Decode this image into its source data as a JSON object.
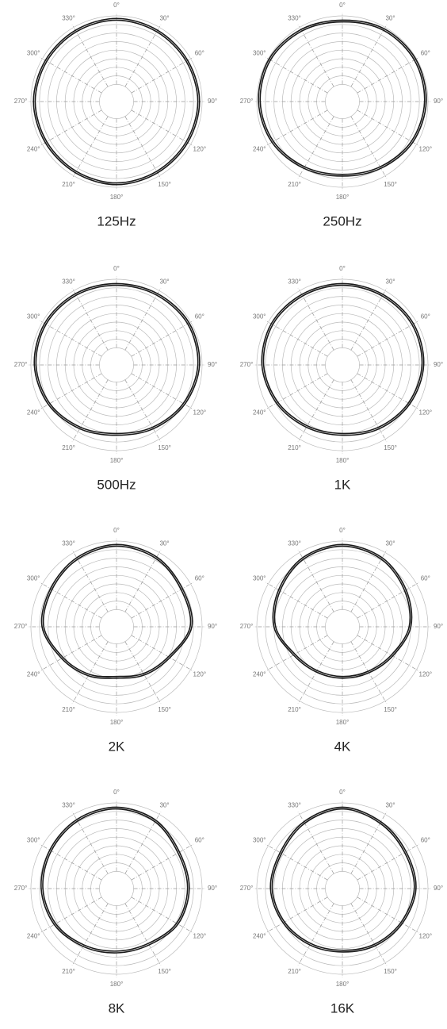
{
  "chart_data": [
    {
      "type": "polar",
      "title": "125Hz",
      "rlim": [
        0,
        10
      ],
      "rticks": [
        2,
        3,
        4,
        5,
        6,
        7,
        8,
        9,
        10
      ],
      "thetaticks": [
        {
          "value": 0,
          "label": "0°"
        },
        {
          "value": 30,
          "label": "30°"
        },
        {
          "value": 60,
          "label": "60°"
        },
        {
          "value": 90,
          "label": "90°"
        },
        {
          "value": 120,
          "label": "120°"
        },
        {
          "value": 150,
          "label": "150°"
        },
        {
          "value": 180,
          "label": "180°"
        },
        {
          "value": 210,
          "label": "210°"
        },
        {
          "value": 240,
          "label": "240°"
        },
        {
          "value": 270,
          "label": "270°"
        },
        {
          "value": 300,
          "label": "300°"
        },
        {
          "value": 330,
          "label": "330°"
        }
      ],
      "series": [
        {
          "color": "#1a1a1a",
          "values": [
            9.7,
            9.6,
            9.6,
            9.7,
            9.6,
            9.6,
            9.7,
            9.6,
            9.6,
            9.7,
            9.6,
            9.6
          ]
        },
        {
          "color": "#1a1a1a",
          "values": [
            9.5,
            9.4,
            9.4,
            9.5,
            9.4,
            9.4,
            9.5,
            9.4,
            9.4,
            9.5,
            9.4,
            9.4
          ]
        }
      ]
    },
    {
      "type": "polar",
      "title": "250Hz",
      "rlim": [
        0,
        10
      ],
      "rticks": [
        2,
        3,
        4,
        5,
        6,
        7,
        8,
        9,
        10
      ],
      "thetaticks": [
        {
          "value": 0,
          "label": "0°"
        },
        {
          "value": 30,
          "label": "30°"
        },
        {
          "value": 60,
          "label": "60°"
        },
        {
          "value": 90,
          "label": "90°"
        },
        {
          "value": 120,
          "label": "120°"
        },
        {
          "value": 150,
          "label": "150°"
        },
        {
          "value": 180,
          "label": "180°"
        },
        {
          "value": 210,
          "label": "210°"
        },
        {
          "value": 240,
          "label": "240°"
        },
        {
          "value": 270,
          "label": "270°"
        },
        {
          "value": 300,
          "label": "300°"
        },
        {
          "value": 330,
          "label": "330°"
        }
      ],
      "series": [
        {
          "color": "#1a1a1a",
          "values": [
            9.5,
            9.8,
            9.9,
            9.8,
            9.5,
            9.0,
            8.7,
            9.0,
            9.5,
            9.8,
            9.9,
            9.7
          ]
        },
        {
          "color": "#1a1a1a",
          "values": [
            9.3,
            9.6,
            9.7,
            9.6,
            9.3,
            8.8,
            8.5,
            8.8,
            9.3,
            9.6,
            9.7,
            9.5
          ]
        }
      ]
    },
    {
      "type": "polar",
      "title": "500Hz",
      "rlim": [
        0,
        10
      ],
      "rticks": [
        2,
        3,
        4,
        5,
        6,
        7,
        8,
        9,
        10
      ],
      "thetaticks": [
        {
          "value": 0,
          "label": "0°"
        },
        {
          "value": 30,
          "label": "30°"
        },
        {
          "value": 60,
          "label": "60°"
        },
        {
          "value": 90,
          "label": "90°"
        },
        {
          "value": 120,
          "label": "120°"
        },
        {
          "value": 150,
          "label": "150°"
        },
        {
          "value": 180,
          "label": "180°"
        },
        {
          "value": 210,
          "label": "210°"
        },
        {
          "value": 240,
          "label": "240°"
        },
        {
          "value": 270,
          "label": "270°"
        },
        {
          "value": 300,
          "label": "300°"
        },
        {
          "value": 330,
          "label": "330°"
        }
      ],
      "series": [
        {
          "color": "#1a1a1a",
          "values": [
            9.5,
            9.6,
            9.8,
            9.7,
            9.2,
            8.6,
            8.2,
            8.6,
            9.2,
            9.6,
            9.7,
            9.6
          ]
        },
        {
          "color": "#1a1a1a",
          "values": [
            9.3,
            9.4,
            9.6,
            9.5,
            9.0,
            8.4,
            8.0,
            8.4,
            9.0,
            9.4,
            9.5,
            9.4
          ]
        }
      ]
    },
    {
      "type": "polar",
      "title": "1K",
      "rlim": [
        0,
        10
      ],
      "rticks": [
        2,
        3,
        4,
        5,
        6,
        7,
        8,
        9,
        10
      ],
      "thetaticks": [
        {
          "value": 0,
          "label": "0°"
        },
        {
          "value": 30,
          "label": "30°"
        },
        {
          "value": 60,
          "label": "60°"
        },
        {
          "value": 90,
          "label": "90°"
        },
        {
          "value": 120,
          "label": "120°"
        },
        {
          "value": 150,
          "label": "150°"
        },
        {
          "value": 180,
          "label": "180°"
        },
        {
          "value": 210,
          "label": "210°"
        },
        {
          "value": 240,
          "label": "240°"
        },
        {
          "value": 270,
          "label": "270°"
        },
        {
          "value": 300,
          "label": "300°"
        },
        {
          "value": 330,
          "label": "330°"
        }
      ],
      "series": [
        {
          "color": "#1a1a1a",
          "values": [
            9.5,
            9.5,
            9.6,
            9.5,
            9.1,
            8.6,
            8.2,
            8.4,
            8.9,
            9.4,
            9.6,
            9.5
          ]
        },
        {
          "color": "#1a1a1a",
          "values": [
            9.3,
            9.3,
            9.4,
            9.3,
            8.9,
            8.4,
            8.0,
            8.2,
            8.7,
            9.2,
            9.4,
            9.3
          ]
        }
      ]
    },
    {
      "type": "polar",
      "title": "2K",
      "rlim": [
        0,
        10
      ],
      "rticks": [
        2,
        3,
        4,
        5,
        6,
        7,
        8,
        9,
        10
      ],
      "thetaticks": [
        {
          "value": 0,
          "label": "0°"
        },
        {
          "value": 30,
          "label": "30°"
        },
        {
          "value": 60,
          "label": "60°"
        },
        {
          "value": 90,
          "label": "90°"
        },
        {
          "value": 120,
          "label": "120°"
        },
        {
          "value": 150,
          "label": "150°"
        },
        {
          "value": 180,
          "label": "180°"
        },
        {
          "value": 210,
          "label": "210°"
        },
        {
          "value": 240,
          "label": "240°"
        },
        {
          "value": 270,
          "label": "270°"
        },
        {
          "value": 300,
          "label": "300°"
        },
        {
          "value": 330,
          "label": "330°"
        }
      ],
      "series": [
        {
          "color": "#1a1a1a",
          "values": [
            9.6,
            9.4,
            8.9,
            8.8,
            7.2,
            6.5,
            6.0,
            6.6,
            7.4,
            8.7,
            8.9,
            9.3
          ]
        },
        {
          "color": "#1a1a1a",
          "values": [
            9.4,
            9.2,
            8.7,
            8.6,
            7.0,
            6.3,
            5.8,
            6.4,
            7.2,
            8.5,
            8.7,
            9.1
          ]
        }
      ]
    },
    {
      "type": "polar",
      "title": "4K",
      "rlim": [
        0,
        10
      ],
      "rticks": [
        2,
        3,
        4,
        5,
        6,
        7,
        8,
        9,
        10
      ],
      "thetaticks": [
        {
          "value": 0,
          "label": "0°"
        },
        {
          "value": 30,
          "label": "30°"
        },
        {
          "value": 60,
          "label": "60°"
        },
        {
          "value": 90,
          "label": "90°"
        },
        {
          "value": 120,
          "label": "120°"
        },
        {
          "value": 150,
          "label": "150°"
        },
        {
          "value": 180,
          "label": "180°"
        },
        {
          "value": 210,
          "label": "210°"
        },
        {
          "value": 240,
          "label": "240°"
        },
        {
          "value": 270,
          "label": "270°"
        },
        {
          "value": 300,
          "label": "300°"
        },
        {
          "value": 330,
          "label": "330°"
        }
      ],
      "series": [
        {
          "color": "#1a1a1a",
          "values": [
            9.6,
            9.3,
            8.6,
            8.0,
            6.8,
            6.2,
            6.0,
            6.1,
            6.6,
            8.0,
            8.6,
            9.3
          ]
        },
        {
          "color": "#1a1a1a",
          "values": [
            9.4,
            9.1,
            8.4,
            7.8,
            6.6,
            6.0,
            5.8,
            5.9,
            6.4,
            7.8,
            8.4,
            9.1
          ]
        }
      ]
    },
    {
      "type": "polar",
      "title": "8K",
      "rlim": [
        0,
        10
      ],
      "rticks": [
        2,
        3,
        4,
        5,
        6,
        7,
        8,
        9,
        10
      ],
      "thetaticks": [
        {
          "value": 0,
          "label": "0°"
        },
        {
          "value": 30,
          "label": "30°"
        },
        {
          "value": 60,
          "label": "60°"
        },
        {
          "value": 90,
          "label": "90°"
        },
        {
          "value": 120,
          "label": "120°"
        },
        {
          "value": 150,
          "label": "150°"
        },
        {
          "value": 180,
          "label": "180°"
        },
        {
          "value": 210,
          "label": "210°"
        },
        {
          "value": 240,
          "label": "240°"
        },
        {
          "value": 270,
          "label": "270°"
        },
        {
          "value": 300,
          "label": "300°"
        },
        {
          "value": 330,
          "label": "330°"
        }
      ],
      "series": [
        {
          "color": "#1a1a1a",
          "values": [
            9.5,
            9.2,
            8.5,
            8.5,
            8.3,
            7.6,
            7.5,
            7.8,
            8.4,
            8.8,
            9.0,
            9.3
          ]
        },
        {
          "color": "#1a1a1a",
          "values": [
            9.3,
            9.0,
            8.3,
            8.3,
            8.1,
            7.4,
            7.3,
            7.6,
            8.2,
            8.6,
            8.8,
            9.1
          ]
        }
      ]
    },
    {
      "type": "polar",
      "title": "16K",
      "rlim": [
        0,
        10
      ],
      "rticks": [
        2,
        3,
        4,
        5,
        6,
        7,
        8,
        9,
        10
      ],
      "thetaticks": [
        {
          "value": 0,
          "label": "0°"
        },
        {
          "value": 30,
          "label": "30°"
        },
        {
          "value": 60,
          "label": "60°"
        },
        {
          "value": 90,
          "label": "90°"
        },
        {
          "value": 120,
          "label": "120°"
        },
        {
          "value": 150,
          "label": "150°"
        },
        {
          "value": 180,
          "label": "180°"
        },
        {
          "value": 210,
          "label": "210°"
        },
        {
          "value": 240,
          "label": "240°"
        },
        {
          "value": 270,
          "label": "270°"
        },
        {
          "value": 300,
          "label": "300°"
        },
        {
          "value": 330,
          "label": "330°"
        }
      ],
      "series": [
        {
          "color": "#1a1a1a",
          "values": [
            9.5,
            9.0,
            8.6,
            8.6,
            8.1,
            7.7,
            7.4,
            7.6,
            8.0,
            8.4,
            8.4,
            9.0
          ]
        },
        {
          "color": "#1a1a1a",
          "values": [
            9.3,
            8.8,
            8.4,
            8.4,
            7.9,
            7.5,
            7.2,
            7.4,
            7.8,
            8.2,
            8.2,
            8.8
          ]
        }
      ]
    }
  ]
}
